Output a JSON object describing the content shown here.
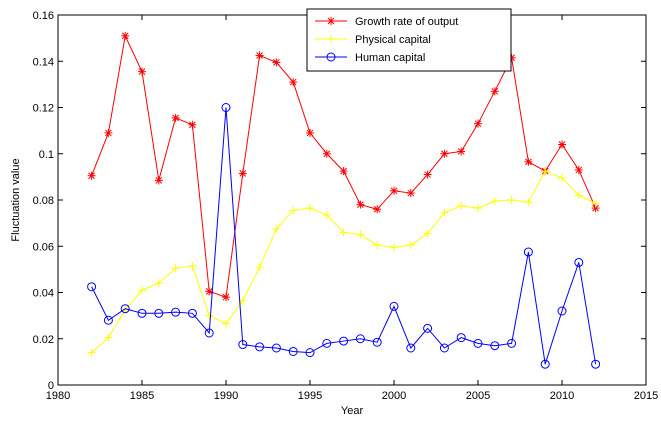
{
  "chart_data": {
    "type": "line",
    "title": "",
    "xlabel": "Year",
    "ylabel": "Fluctuation value",
    "xlim": [
      1980,
      2015
    ],
    "ylim": [
      0,
      0.16
    ],
    "xticks": [
      1980,
      1985,
      1990,
      1995,
      2000,
      2005,
      2010,
      2015
    ],
    "xtick_labels": [
      "1980",
      "1985",
      "1990",
      "1995",
      "2000",
      "2005",
      "2010",
      "2015"
    ],
    "yticks": [
      0,
      0.02,
      0.04,
      0.06,
      0.08,
      0.1,
      0.12,
      0.14,
      0.16
    ],
    "ytick_labels": [
      "0",
      "0.02",
      "0.04",
      "0.06",
      "0.08",
      "0.1",
      "0.12",
      "0.14",
      "0.16"
    ],
    "grid": false,
    "legend_position": "top-center",
    "x": [
      1982,
      1983,
      1984,
      1985,
      1986,
      1987,
      1988,
      1989,
      1990,
      1991,
      1992,
      1993,
      1994,
      1995,
      1996,
      1997,
      1998,
      1999,
      2000,
      2001,
      2002,
      2003,
      2004,
      2005,
      2006,
      2007,
      2008,
      2009,
      2010,
      2011,
      2012
    ],
    "series": [
      {
        "name": "Growth rate of output",
        "color": "#ff0000",
        "marker": "asterisk",
        "values": [
          0.0905,
          0.109,
          0.151,
          0.1355,
          0.0885,
          0.1155,
          0.1125,
          0.0405,
          0.038,
          0.0915,
          0.1425,
          0.1395,
          0.131,
          0.109,
          0.1,
          0.0925,
          0.078,
          0.076,
          0.084,
          0.083,
          0.091,
          0.1,
          0.101,
          0.113,
          0.127,
          0.1415,
          0.0965,
          0.0925,
          0.104,
          0.093,
          0.0765
        ]
      },
      {
        "name": "Physical capital",
        "color": "#ffff00",
        "marker": "plus",
        "values": [
          0.014,
          0.0205,
          0.0325,
          0.041,
          0.044,
          0.0505,
          0.0515,
          0.03,
          0.0265,
          0.0365,
          0.051,
          0.0675,
          0.0755,
          0.0765,
          0.0735,
          0.066,
          0.065,
          0.0605,
          0.0595,
          0.0605,
          0.0655,
          0.0745,
          0.0775,
          0.0765,
          0.0795,
          0.08,
          0.079,
          0.0925,
          0.0895,
          0.082,
          0.0785
        ]
      },
      {
        "name": "Human capital",
        "color": "#0000ff",
        "marker": "circle",
        "values": [
          0.0425,
          0.028,
          0.033,
          0.031,
          0.031,
          0.0315,
          0.031,
          0.0225,
          0.12,
          0.0175,
          0.0165,
          0.016,
          0.0145,
          0.014,
          0.018,
          0.019,
          0.02,
          0.0185,
          0.034,
          0.016,
          0.0245,
          0.016,
          0.0205,
          0.018,
          0.017,
          0.018,
          0.0575,
          0.009,
          0.032,
          0.053,
          0.009
        ]
      }
    ]
  }
}
